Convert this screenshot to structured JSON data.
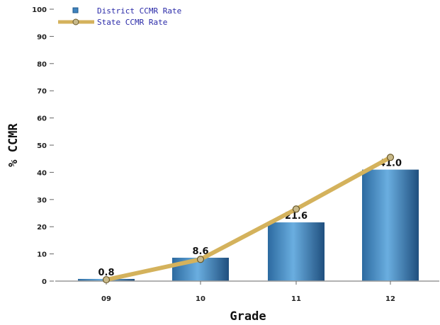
{
  "chart_data": {
    "type": "bar",
    "categories": [
      "09",
      "10",
      "11",
      "12"
    ],
    "series": [
      {
        "name": "District CCMR Rate",
        "type": "bar",
        "values": [
          0.8,
          8.6,
          21.6,
          41.0
        ],
        "labels": [
          "0.8",
          "8.6",
          "21.6",
          "41.0"
        ]
      },
      {
        "name": "State CCMR Rate",
        "type": "line",
        "values": [
          0.5,
          8.0,
          26.5,
          45.5
        ]
      }
    ],
    "xlabel": "Grade",
    "ylabel": "% CCMR",
    "ylim": [
      0,
      100
    ],
    "yticks": [
      0,
      10,
      20,
      30,
      40,
      50,
      60,
      70,
      80,
      90,
      100
    ],
    "grid": false,
    "legend_position": "top-left"
  },
  "colors": {
    "bar_light": "#5b9fd6",
    "bar_dark": "#1f5a8c",
    "line": "#d4b25c",
    "marker_fill": "#c8b98a",
    "marker_stroke": "#6b5a2a",
    "legend_text": "#2a2aa8"
  }
}
